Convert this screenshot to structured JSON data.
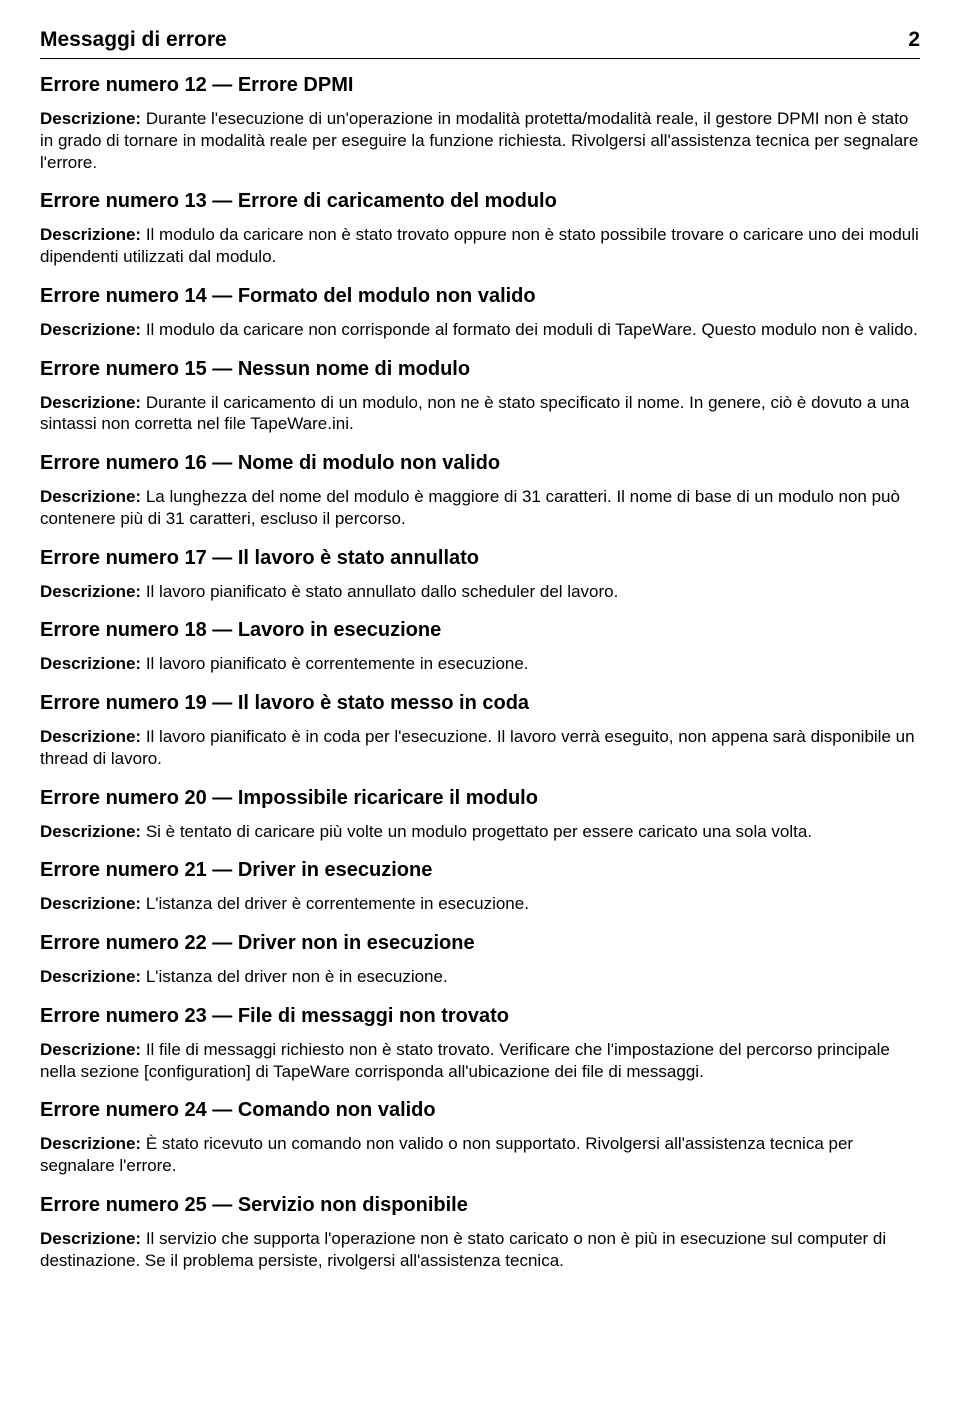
{
  "header": {
    "title": "Messaggi di errore",
    "page_number": "2"
  },
  "desc_label": "Descrizione:",
  "errors": [
    {
      "title": "Errore numero 12 — Errore DPMI",
      "desc": "Durante l'esecuzione di un'operazione in modalità protetta/modalità reale, il gestore DPMI non è stato in grado di tornare in modalità reale per eseguire la funzione richiesta. Rivolgersi all'assistenza tecnica per segnalare l'errore."
    },
    {
      "title": "Errore numero 13 — Errore di caricamento del modulo",
      "desc": "Il modulo da caricare non è stato trovato oppure non è stato possibile trovare o caricare uno dei moduli dipendenti utilizzati dal modulo."
    },
    {
      "title": "Errore numero 14 — Formato del modulo non valido",
      "desc": "Il modulo da caricare non corrisponde al formato dei moduli di TapeWare. Questo modulo non è valido."
    },
    {
      "title": "Errore numero 15 — Nessun nome di modulo",
      "desc": "Durante il caricamento di un modulo, non ne è stato specificato il nome. In genere, ciò è dovuto a una sintassi non corretta nel file TapeWare.ini."
    },
    {
      "title": "Errore numero 16 — Nome di modulo non valido",
      "desc": "La lunghezza del nome del modulo è maggiore di 31 caratteri. Il nome di base di un modulo non può contenere più di 31 caratteri, escluso il percorso."
    },
    {
      "title": "Errore numero 17 — Il lavoro è stato annullato",
      "desc": "Il lavoro pianificato è stato annullato dallo scheduler del lavoro."
    },
    {
      "title": "Errore numero 18 — Lavoro in esecuzione",
      "desc": "Il lavoro pianificato è correntemente in esecuzione."
    },
    {
      "title": "Errore numero 19 — Il lavoro è stato messo in coda",
      "desc": "Il lavoro pianificato è in coda per l'esecuzione. Il lavoro verrà eseguito, non appena sarà disponibile un thread di lavoro."
    },
    {
      "title": "Errore numero 20 — Impossibile ricaricare il modulo",
      "desc": "Si è tentato di caricare più volte un modulo progettato per essere caricato una sola volta."
    },
    {
      "title": "Errore numero 21 — Driver in esecuzione",
      "desc": "L'istanza del driver è correntemente in esecuzione."
    },
    {
      "title": "Errore numero 22 — Driver non in esecuzione",
      "desc": "L'istanza del driver non è in esecuzione."
    },
    {
      "title": "Errore numero 23 — File di messaggi non trovato",
      "desc": "Il file di messaggi richiesto non è stato trovato. Verificare che l'impostazione del percorso principale nella sezione [configuration] di TapeWare corrisponda all'ubicazione dei file di messaggi."
    },
    {
      "title": "Errore numero 24 — Comando non valido",
      "desc": "È stato ricevuto un comando non valido o non supportato. Rivolgersi all'assistenza tecnica per segnalare l'errore."
    },
    {
      "title": "Errore numero 25 — Servizio non disponibile",
      "desc": "Il servizio che supporta l'operazione non è stato caricato o non è più in esecuzione sul computer di destinazione. Se il problema persiste, rivolgersi all'assistenza tecnica."
    }
  ]
}
